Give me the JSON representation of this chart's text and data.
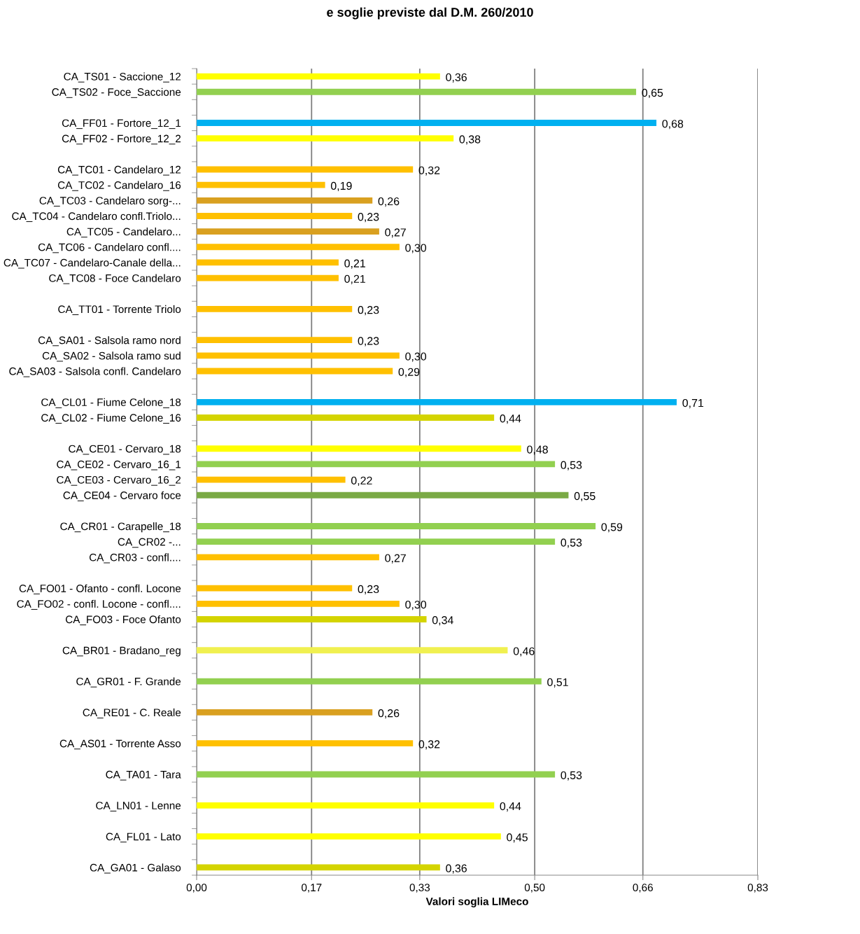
{
  "chart_data": {
    "type": "bar",
    "orientation": "horizontal",
    "title": "e soglie previste dal D.M. 260/2010",
    "xlabel": "Valori soglia LIMeco",
    "categories": [
      "CA_TS01 - Saccione_12",
      "CA_TS02 - Foce_Saccione",
      null,
      "CA_FF01 - Fortore_12_1",
      "CA_FF02 - Fortore_12_2",
      null,
      "CA_TC01 - Candelaro_12",
      "CA_TC02 - Candelaro_16",
      "CA_TC03 - Candelaro sorg-...",
      "CA_TC04 - Candelaro confl.Triolo...",
      "CA_TC05 - Candelaro...",
      "CA_TC06 - Candelaro confl....",
      "CA_TC07 - Candelaro-Canale della...",
      "CA_TC08 - Foce Candelaro",
      null,
      "CA_TT01 - Torrente Triolo",
      null,
      "CA_SA01 - Salsola ramo nord",
      "CA_SA02 - Salsola ramo sud",
      "CA_SA03 - Salsola confl. Candelaro",
      null,
      "CA_CL01 - Fiume Celone_18",
      "CA_CL02 - Fiume Celone_16",
      null,
      "CA_CE01 - Cervaro_18",
      "CA_CE02 - Cervaro_16_1",
      "CA_CE03 - Cervaro_16_2",
      "CA_CE04 - Cervaro foce",
      null,
      "CA_CR01 - Carapelle_18",
      "CA_CR02 -...",
      "CA_CR03 - confl....",
      null,
      "CA_FO01 - Ofanto - confl. Locone",
      "CA_FO02 - confl. Locone - confl....",
      "CA_FO03 - Foce Ofanto",
      null,
      "CA_BR01 - Bradano_reg",
      null,
      "CA_GR01 - F. Grande",
      null,
      "CA_RE01 - C. Reale",
      null,
      "CA_AS01 - Torrente Asso",
      null,
      "CA_TA01 - Tara",
      null,
      "CA_LN01 - Lenne",
      null,
      "CA_FL01 - Lato",
      null,
      "CA_GA01 - Galaso"
    ],
    "values": [
      0.36,
      0.65,
      null,
      0.68,
      0.38,
      null,
      0.32,
      0.19,
      0.26,
      0.23,
      0.27,
      0.3,
      0.21,
      0.21,
      null,
      0.23,
      null,
      0.23,
      0.3,
      0.29,
      null,
      0.71,
      0.44,
      null,
      0.48,
      0.53,
      0.22,
      0.55,
      null,
      0.59,
      0.53,
      0.27,
      null,
      0.23,
      0.3,
      0.34,
      null,
      0.46,
      null,
      0.51,
      null,
      0.26,
      null,
      0.32,
      null,
      0.53,
      null,
      0.44,
      null,
      0.45,
      null,
      0.36
    ],
    "value_labels": [
      "0,36",
      "0,65",
      null,
      "0,68",
      "0,38",
      null,
      "0,32",
      "0,19",
      "0,26",
      "0,23",
      "0,27",
      "0,30",
      "0,21",
      "0,21",
      null,
      "0,23",
      null,
      "0,23",
      "0,30",
      "0,29",
      null,
      "0,71",
      "0,44",
      null,
      "0,48",
      "0,53",
      "0,22",
      "0,55",
      null,
      "0,59",
      "0,53",
      "0,27",
      null,
      "0,23",
      "0,30",
      "0,34",
      null,
      "0,46",
      null,
      "0,51",
      null,
      "0,26",
      null,
      "0,32",
      null,
      "0,53",
      null,
      "0,44",
      null,
      "0,45",
      null,
      "0,36"
    ],
    "colors": [
      "#ffff00",
      "#92d050",
      null,
      "#00b0f0",
      "#ffff00",
      null,
      "#ffc000",
      "#ffc000",
      "#d9a020",
      "#ffc000",
      "#d9a020",
      "#ffc000",
      "#ffc000",
      "#ffc000",
      null,
      "#ffc000",
      null,
      "#ffc000",
      "#ffc000",
      "#ffc000",
      null,
      "#00b0f0",
      "#d4d400",
      null,
      "#ffff00",
      "#92d050",
      "#ffc000",
      "#7aaa45",
      null,
      "#92d050",
      "#92d050",
      "#ffc000",
      null,
      "#ffc000",
      "#ffc000",
      "#d4d400",
      null,
      "#f0f050",
      null,
      "#92d050",
      null,
      "#d9a020",
      null,
      "#ffc000",
      null,
      "#92d050",
      null,
      "#ffff00",
      null,
      "#ffff00",
      null,
      "#d4d400"
    ],
    "xlim": [
      0,
      0.83
    ],
    "xticks": [
      {
        "value": 0,
        "label": "0,00"
      },
      {
        "value": 0.17,
        "label": "0,17"
      },
      {
        "value": 0.33,
        "label": "0,33"
      },
      {
        "value": 0.5,
        "label": "0,50"
      },
      {
        "value": 0.66,
        "label": "0,66"
      },
      {
        "value": 0.83,
        "label": "0,83"
      }
    ],
    "grid": "x"
  }
}
